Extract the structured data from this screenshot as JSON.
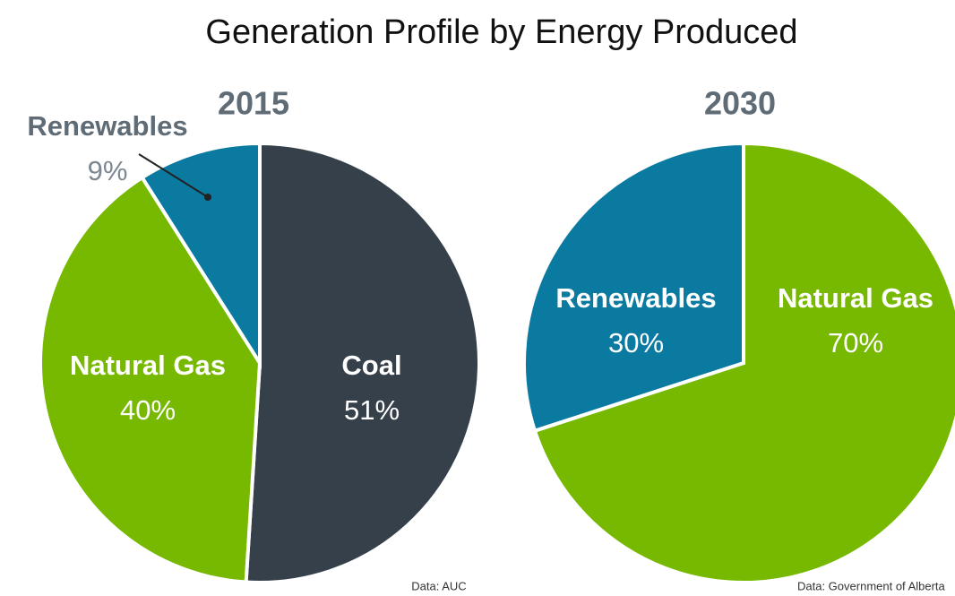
{
  "title": "Generation Profile by Energy Produced",
  "chart_data": [
    {
      "type": "pie",
      "title": "2015",
      "categories": [
        "Coal",
        "Natural Gas",
        "Renewables"
      ],
      "values": [
        51,
        40,
        9
      ],
      "value_labels": [
        "51%",
        "40%",
        "9%"
      ],
      "colors": [
        "#36404a",
        "#77b800",
        "#0a7aa0"
      ],
      "source": "Data: AUC"
    },
    {
      "type": "pie",
      "title": "2030",
      "categories": [
        "Natural Gas",
        "Renewables"
      ],
      "values": [
        70,
        30
      ],
      "value_labels": [
        "70%",
        "30%"
      ],
      "colors": [
        "#77b800",
        "#0a7aa0"
      ],
      "source": "Data: Government of Alberta"
    }
  ]
}
